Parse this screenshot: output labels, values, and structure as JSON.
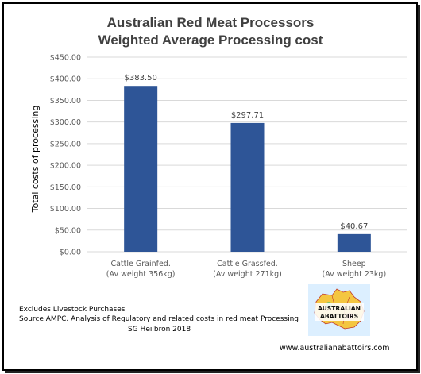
{
  "chart_data": {
    "type": "bar",
    "title_line1": "Australian Red Meat Processors",
    "title_line2": "Weighted Average Processing cost",
    "ylabel": "Total costs of processing",
    "ylim": [
      0,
      450
    ],
    "yticks": [
      "$0.00",
      "$50.00",
      "$100.00",
      "$150.00",
      "$200.00",
      "$250.00",
      "$300.00",
      "$350.00",
      "$400.00",
      "$450.00"
    ],
    "grid": true,
    "color": "#2e5597",
    "categories": [
      {
        "line1": "Cattle Grainfed.",
        "line2": "(Av weight 356kg)"
      },
      {
        "line1": "Cattle Grassfed.",
        "line2": "(Av weight 271kg)"
      },
      {
        "line1": "Sheep",
        "line2": "(Av weight 23kg)"
      }
    ],
    "values": [
      383.5,
      297.71,
      40.67
    ],
    "data_labels": [
      "$383.50",
      "$297.71",
      "$40.67"
    ]
  },
  "notes": {
    "line1": "Excludes Livestock Purchases",
    "line2": "Source AMPC. Analysis of Regulatory and related costs in red meat Processing",
    "line3": "SG Heilbron 2018"
  },
  "logo": {
    "line1": "AUSTRALIAN",
    "line2": "ABATTOIRS"
  },
  "website": "www.australianabattoirs.com"
}
